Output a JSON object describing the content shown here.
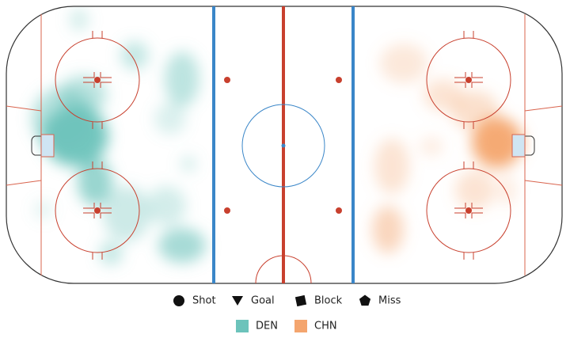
{
  "legend": {
    "shapes": [
      {
        "label": "Shot",
        "shape": "circle"
      },
      {
        "label": "Goal",
        "shape": "triangle"
      },
      {
        "label": "Block",
        "shape": "square"
      },
      {
        "label": "Miss",
        "shape": "pentagon"
      }
    ],
    "teams": [
      {
        "label": "DEN",
        "color": "#6cc3bb"
      },
      {
        "label": "CHN",
        "color": "#f4a56e"
      }
    ]
  }
}
